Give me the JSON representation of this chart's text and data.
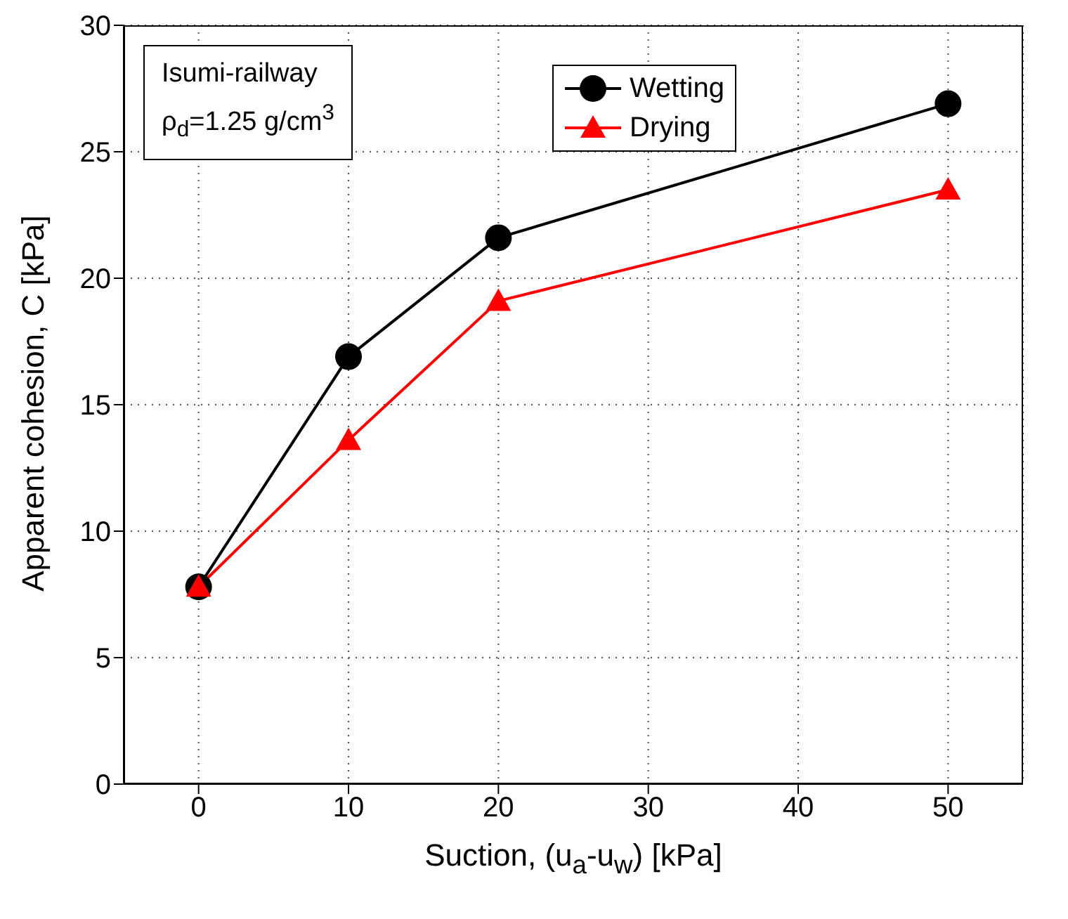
{
  "chart_data": {
    "type": "line",
    "xlabel": "Suction, (u$_{a}$-u$_{w}$) [kPa]",
    "ylabel": "Apparent cohesion, C [kPa]",
    "x": [
      0,
      10,
      20,
      50
    ],
    "series": [
      {
        "name": "Wetting",
        "color": "#000000",
        "marker": "circle",
        "values": [
          7.8,
          16.9,
          21.6,
          26.9
        ]
      },
      {
        "name": "Drying",
        "color": "#ff0000",
        "marker": "triangle",
        "values": [
          7.8,
          13.6,
          19.1,
          23.5
        ]
      }
    ],
    "xlim": [
      -5,
      55
    ],
    "xticks": [
      0,
      10,
      20,
      30,
      40,
      50
    ],
    "ylim": [
      0,
      30
    ],
    "yticks": [
      0,
      5,
      10,
      15,
      20,
      25,
      30
    ],
    "grid": true,
    "legend": "top right",
    "line_style": "solid",
    "annotations": [
      "Isumi-railway",
      "ρ$_{d}$=1.25 g/cm$^{3}$"
    ]
  }
}
